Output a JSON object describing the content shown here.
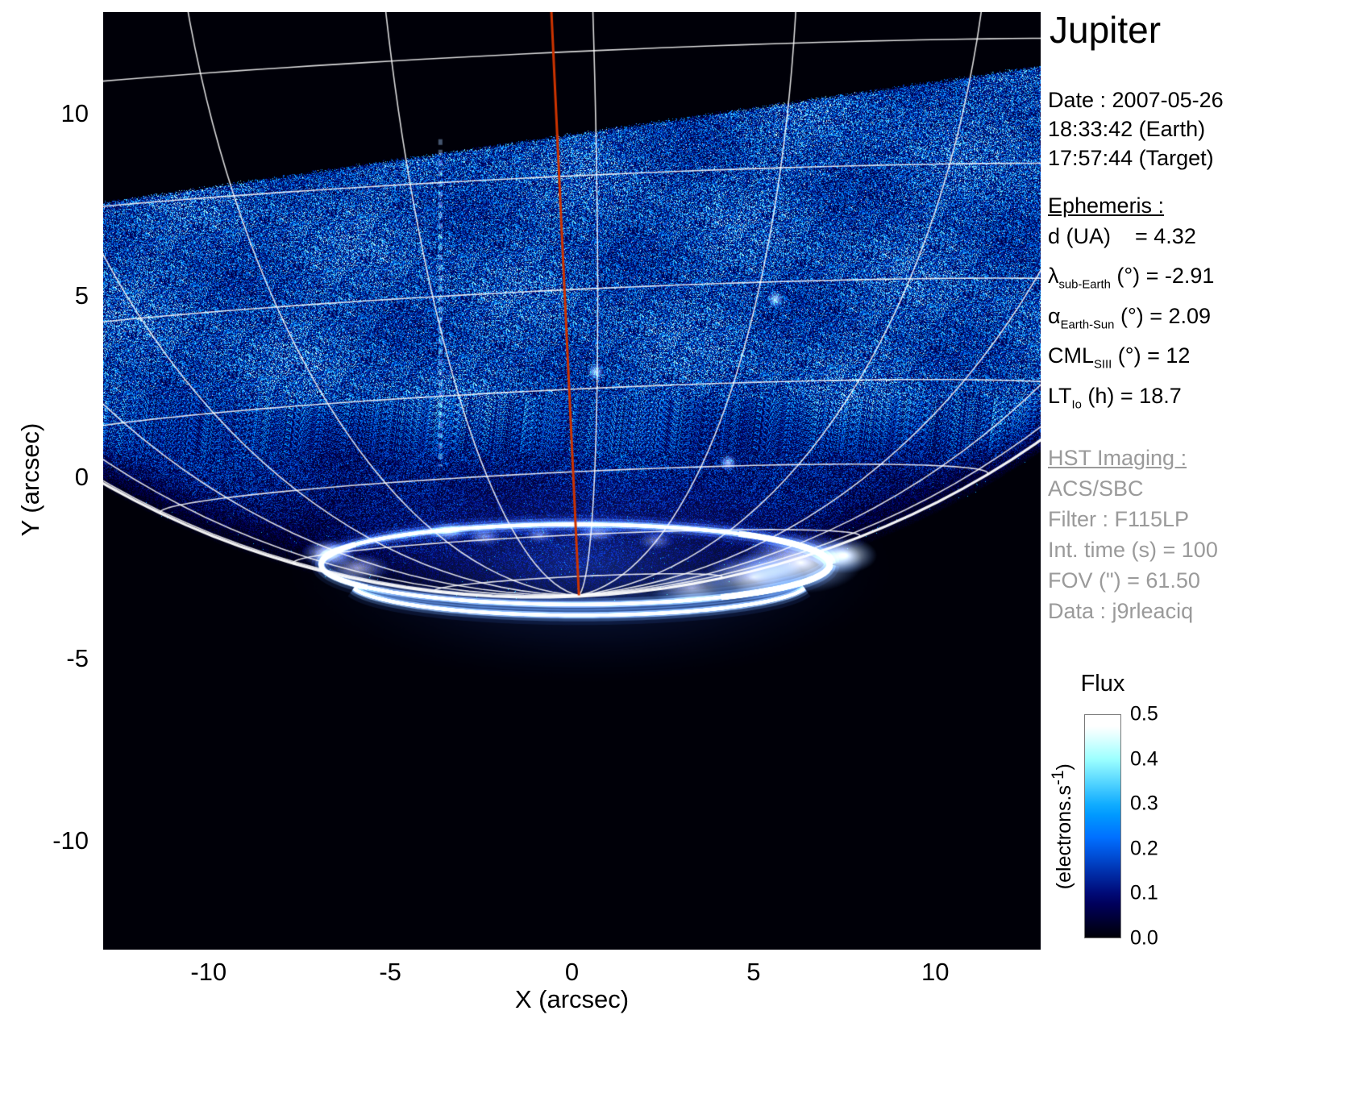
{
  "title": "Jupiter",
  "observation": {
    "date": "Date : 2007-05-26",
    "time_earth": "18:33:42 (Earth)",
    "time_target": "17:57:44 (Target)"
  },
  "ephemeris": {
    "heading": "Ephemeris :",
    "rows": [
      {
        "sym": "d (UA)",
        "sub": "",
        "rest": "    = 4.32"
      },
      {
        "sym": "λ",
        "sub": "sub-Earth",
        "rest": " (°) = -2.91"
      },
      {
        "sym": "α",
        "sub": "Earth-Sun",
        "rest": " (°) = 2.09"
      },
      {
        "sym": "CML",
        "sub": "SIII",
        "rest": " (°) = 12"
      },
      {
        "sym": "LT",
        "sub": "Io",
        "rest": " (h) = 18.7"
      }
    ]
  },
  "hst": {
    "heading": "HST Imaging :",
    "lines": [
      "ACS/SBC",
      "Filter : F115LP",
      "Int. time (s) = 100",
      "FOV (\") = 61.50",
      "Data : j9rleaciq"
    ]
  },
  "axes": {
    "x_label": "X (arcsec)",
    "y_label": "Y (arcsec)"
  },
  "colorbar": {
    "title": "Flux",
    "unit_pre": "(electrons.s",
    "unit_sup": "-1",
    "unit_post": ")",
    "tick_labels": [
      "0.5",
      "0.4",
      "0.3",
      "0.2",
      "0.1",
      "0.0"
    ]
  },
  "chart_data": {
    "type": "heatmap",
    "title": "Jupiter",
    "xlabel": "X (arcsec)",
    "ylabel": "Y (arcsec)",
    "xlim": [
      -12.9,
      12.9
    ],
    "ylim": [
      -13.0,
      12.8
    ],
    "x_ticks": [
      -10,
      -5,
      0,
      5,
      10
    ],
    "y_ticks": [
      10,
      5,
      0,
      -5,
      -10
    ],
    "background": "#000000",
    "grid_color": "#ffffff",
    "cml_color": "#cc3300",
    "colorbar": {
      "label": "Flux (electrons.s-1)",
      "range": [
        0,
        0.5
      ],
      "ticks": [
        0,
        0.1,
        0.2,
        0.3,
        0.4,
        0.5
      ],
      "colormap": "black-blue-white"
    },
    "planet": {
      "cx": -0.8,
      "cy": 17.8,
      "req": 22.8,
      "rpol": 21.1,
      "sub_lat": -2.91,
      "pos_angle": 2.7,
      "cml_deg": 12
    },
    "grid": {
      "latitudes": [
        -80,
        -70,
        -60,
        -50,
        -40,
        -30,
        -20,
        -10
      ],
      "meridians_offset_deg": [
        -87,
        -72,
        -57,
        -42,
        -27,
        -12,
        3,
        18,
        33,
        48,
        63,
        78
      ]
    },
    "detector_edge": {
      "x0": -12.9,
      "y0": 7.55,
      "x1": 12.9,
      "y1": 11.3
    },
    "artifact_streak": {
      "x": -3.62,
      "y_top": 9.3,
      "y_bottom": 0.3
    },
    "point_sources": [
      [
        0.65,
        2.9
      ],
      [
        5.6,
        4.9
      ],
      [
        4.3,
        0.4
      ]
    ],
    "aurora": {
      "haze": {
        "x": 0.5,
        "y": -2.5,
        "r": 8.5,
        "flatten": 0.38
      },
      "main_oval": {
        "cx": 0.1,
        "cy": -2.4,
        "rx": 7.0,
        "ry": 1.1
      },
      "bottom_arc": {
        "cx": 0.2,
        "cy": -2.9,
        "rx": 6.3,
        "ry": 0.9,
        "a0_deg": 190,
        "a1_deg": 350
      },
      "blobs": [
        {
          "x": 6.3,
          "y": -2.35,
          "rx": 1.7,
          "ry": 0.85,
          "a": 1.0
        },
        {
          "x": 7.5,
          "y": -2.15,
          "rx": 0.9,
          "ry": 0.5,
          "a": 0.95
        },
        {
          "x": 5.0,
          "y": -2.75,
          "rx": 1.4,
          "ry": 0.65,
          "a": 0.85
        },
        {
          "x": 3.3,
          "y": -3.05,
          "rx": 1.2,
          "ry": 0.5,
          "a": 0.6
        },
        {
          "x": -6.7,
          "y": -2.1,
          "rx": 0.75,
          "ry": 0.4,
          "a": 0.95
        },
        {
          "x": -5.9,
          "y": -2.5,
          "rx": 0.9,
          "ry": 0.4,
          "a": 0.6
        },
        {
          "x": -3.4,
          "y": -1.5,
          "rx": 0.55,
          "ry": 0.28,
          "a": 0.5
        },
        {
          "x": -2.4,
          "y": -1.65,
          "rx": 0.5,
          "ry": 0.25,
          "a": 0.45
        },
        {
          "x": -0.9,
          "y": -1.6,
          "rx": 0.45,
          "ry": 0.22,
          "a": 0.4
        },
        {
          "x": 0.7,
          "y": -1.55,
          "rx": 0.55,
          "ry": 0.25,
          "a": 0.45
        },
        {
          "x": 2.3,
          "y": -1.75,
          "rx": 0.5,
          "ry": 0.25,
          "a": 0.4
        }
      ]
    }
  }
}
